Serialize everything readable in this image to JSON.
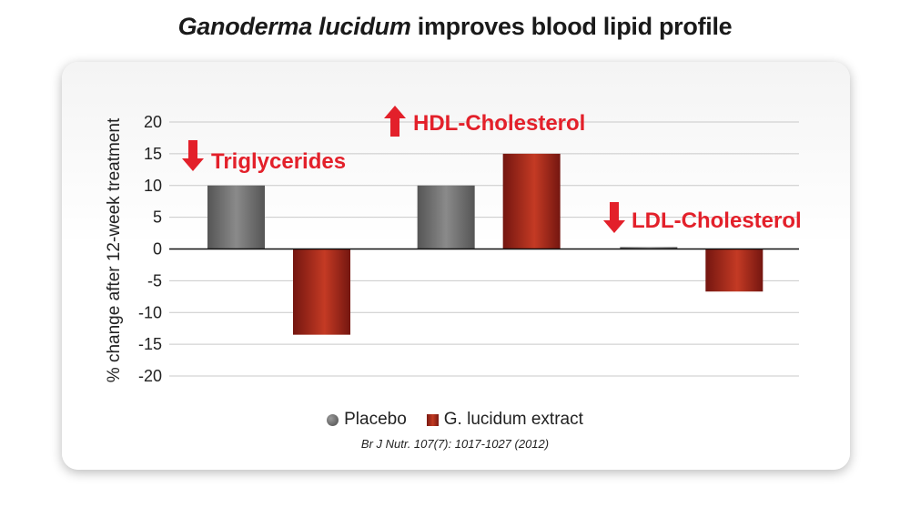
{
  "title": {
    "italic_part": "Ganoderma lucidum",
    "rest": "improves blood lipid profile"
  },
  "chart_data": {
    "type": "bar",
    "ylabel": "% change after 12-week treatment",
    "ylim": [
      -20,
      20
    ],
    "yticks": [
      20,
      15,
      10,
      5,
      0,
      -5,
      -10,
      -15,
      -20
    ],
    "grid": true,
    "categories": [
      "Triglycerides",
      "HDL-Cholesterol",
      "LDL-Cholesterol"
    ],
    "category_direction": [
      "down",
      "up",
      "down"
    ],
    "series": [
      {
        "name": "Placebo",
        "values": [
          10,
          10,
          0.3
        ],
        "color": "#6b6b6b"
      },
      {
        "name": "G. lucidum extract",
        "values": [
          -13.5,
          15,
          -6.7
        ],
        "color": "#a3281b"
      }
    ],
    "legend_position": "bottom",
    "arrow_color": "#e3202a"
  },
  "source": "Br J Nutr. 107(7): 1017-1027 (2012)"
}
